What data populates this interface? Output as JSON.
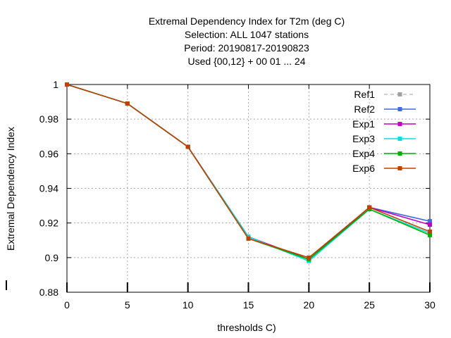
{
  "chart_data": {
    "type": "line",
    "title_lines": [
      "Extremal Dependency Index  for T2m (deg C)",
      "Selection: ALL    1047 stations",
      "Period: 20190817-20190823",
      "Used {00,12} + 00 01 ... 24"
    ],
    "xlabel": "thresholds C)",
    "ylabel": "Extremal Dependency Index",
    "x": [
      0,
      5,
      10,
      15,
      20,
      25,
      30
    ],
    "xlim": [
      0,
      30
    ],
    "ylim": [
      0.88,
      1.0
    ],
    "xticks": [
      0,
      5,
      10,
      15,
      20,
      25,
      30
    ],
    "yticks": [
      0.88,
      0.9,
      0.92,
      0.94,
      0.96,
      0.98,
      1.0
    ],
    "ytick_labels": [
      "0.88",
      "0.9",
      "0.92",
      "0.94",
      "0.96",
      "0.98",
      "1"
    ],
    "grid": true,
    "legend_position": "top-right",
    "series": [
      {
        "name": "Ref1",
        "color": "#a0a0a0",
        "dashed": true,
        "values": [
          1.0,
          0.989,
          0.964,
          0.912,
          0.899,
          0.929,
          0.921
        ]
      },
      {
        "name": "Ref2",
        "color": "#4169e1",
        "dashed": false,
        "values": [
          1.0,
          0.989,
          0.964,
          0.912,
          0.899,
          0.929,
          0.921
        ]
      },
      {
        "name": "Exp1",
        "color": "#c000c0",
        "dashed": false,
        "values": [
          1.0,
          0.989,
          0.964,
          0.912,
          0.899,
          0.929,
          0.919
        ]
      },
      {
        "name": "Exp3",
        "color": "#00e0e0",
        "dashed": false,
        "values": [
          1.0,
          0.989,
          0.964,
          0.912,
          0.898,
          0.928,
          0.914
        ]
      },
      {
        "name": "Exp4",
        "color": "#00b000",
        "dashed": false,
        "values": [
          1.0,
          0.989,
          0.964,
          0.911,
          0.899,
          0.928,
          0.913
        ]
      },
      {
        "name": "Exp6",
        "color": "#c04000",
        "dashed": false,
        "values": [
          1.0,
          0.989,
          0.964,
          0.911,
          0.9,
          0.929,
          0.915
        ]
      }
    ]
  }
}
